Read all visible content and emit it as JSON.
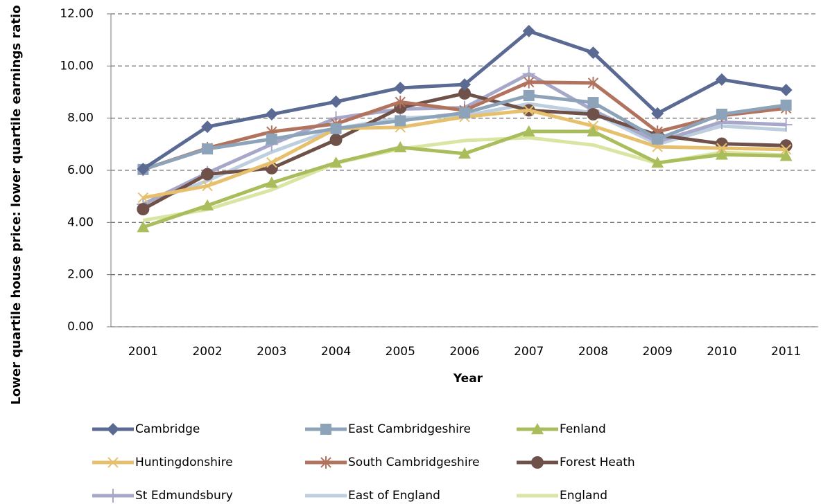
{
  "chart_data": {
    "type": "line",
    "x_label": "Year",
    "y_label": "Lower quartile house price: lower quartile earnings ratio",
    "categories": [
      "2001",
      "2002",
      "2003",
      "2004",
      "2005",
      "2006",
      "2007",
      "2008",
      "2009",
      "2010",
      "2011"
    ],
    "ylim": [
      0,
      12
    ],
    "yticks": [
      {
        "value": 0,
        "label": "0.00"
      },
      {
        "value": 2,
        "label": "2.00"
      },
      {
        "value": 4,
        "label": "4.00"
      },
      {
        "value": 6,
        "label": "6.00"
      },
      {
        "value": 8,
        "label": "8.00"
      },
      {
        "value": 10,
        "label": "10.00"
      },
      {
        "value": 12,
        "label": "12.00"
      }
    ],
    "grid": true,
    "legend": "bottom",
    "series": [
      {
        "name": "Cambridge",
        "color": "#5b6a93",
        "marker": "diamond",
        "values": [
          6.05,
          7.67,
          8.15,
          8.63,
          9.16,
          9.29,
          11.34,
          10.51,
          8.18,
          9.48,
          9.08
        ]
      },
      {
        "name": "East Cambridgeshire",
        "color": "#8da3b9",
        "marker": "square",
        "values": [
          6.03,
          6.82,
          7.2,
          7.6,
          7.9,
          8.2,
          8.87,
          8.6,
          7.2,
          8.15,
          8.5
        ]
      },
      {
        "name": "Fenland",
        "color": "#a9bd5c",
        "marker": "triangle",
        "values": [
          3.82,
          4.65,
          5.52,
          6.29,
          6.88,
          6.64,
          7.49,
          7.49,
          6.29,
          6.6,
          6.55
        ]
      },
      {
        "name": "Huntingdonshire",
        "color": "#e6c06c",
        "marker": "x",
        "values": [
          4.95,
          5.4,
          6.3,
          7.6,
          7.65,
          8.05,
          8.3,
          7.7,
          6.9,
          6.85,
          6.8
        ]
      },
      {
        "name": "South Cambridgeshire",
        "color": "#b1735d",
        "marker": "asterisk",
        "values": [
          6.03,
          6.85,
          7.48,
          7.78,
          8.62,
          8.3,
          9.38,
          9.35,
          7.48,
          8.1,
          8.38
        ]
      },
      {
        "name": "Forest Heath",
        "color": "#6f514a",
        "marker": "circle",
        "values": [
          4.51,
          5.85,
          6.08,
          7.17,
          8.4,
          8.95,
          8.3,
          8.15,
          7.35,
          7.02,
          6.95
        ]
      },
      {
        "name": "St Edmundsbury",
        "color": "#a7a8c9",
        "marker": "plus",
        "values": [
          4.7,
          5.9,
          7.0,
          8.0,
          8.35,
          8.4,
          9.7,
          8.3,
          7.1,
          7.85,
          7.75
        ]
      },
      {
        "name": "East of England",
        "color": "#bdcedf",
        "marker": "none",
        "values": [
          4.7,
          5.6,
          6.7,
          7.6,
          8.0,
          8.1,
          8.55,
          8.2,
          7.0,
          7.7,
          7.55
        ]
      },
      {
        "name": "England",
        "color": "#d9e5a2",
        "marker": "none",
        "values": [
          4.08,
          4.5,
          5.25,
          6.28,
          6.82,
          7.14,
          7.25,
          6.97,
          6.27,
          6.69,
          6.58
        ]
      }
    ]
  }
}
